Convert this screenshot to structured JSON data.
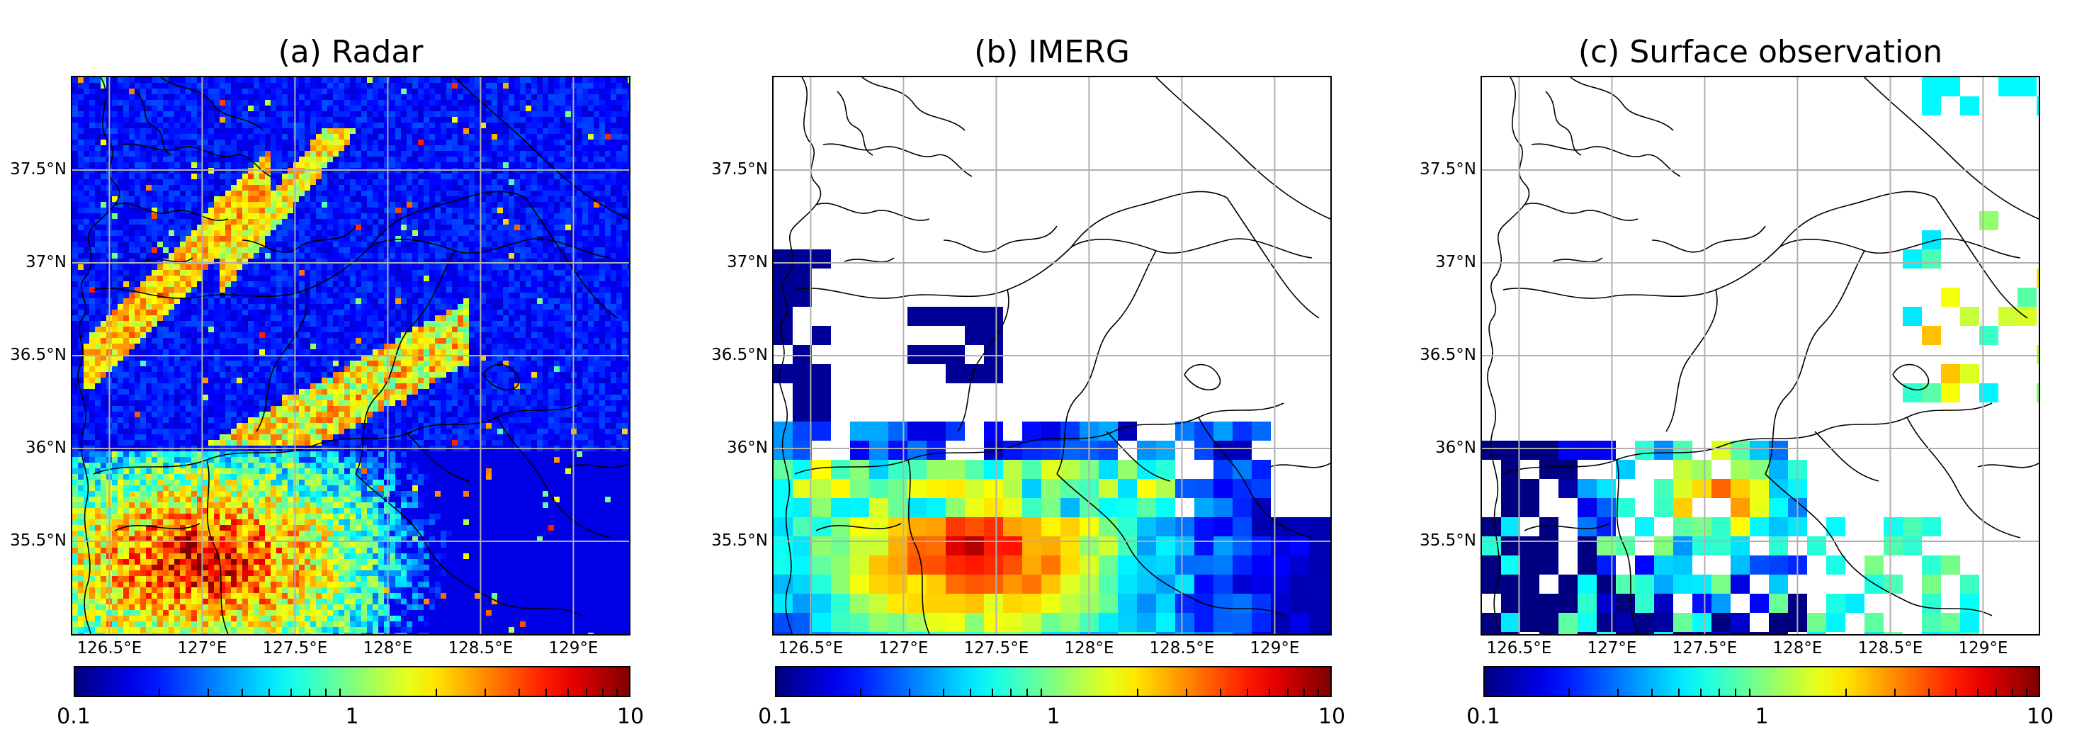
{
  "panels": [
    {
      "title": "(a) Radar",
      "kind": "radar"
    },
    {
      "title": "(b) IMERG",
      "kind": "imerg"
    },
    {
      "title": "(c) Surface observation",
      "kind": "surface"
    }
  ],
  "lat_labels": [
    "37.5°N",
    "37°N",
    "36.5°N",
    "36°N",
    "35.5°N"
  ],
  "lon_labels": [
    "126.5°E",
    "127°E",
    "127.5°E",
    "128°E",
    "128.5°E",
    "129°E"
  ],
  "colorbar": {
    "colormap": "jet",
    "scale": "log",
    "range": [
      0.1,
      10
    ],
    "tick_labels": [
      "0.1",
      "1",
      "10"
    ]
  },
  "map_extent": {
    "lon": [
      126.3,
      129.3
    ],
    "lat": [
      35.0,
      38.0
    ]
  },
  "colors": {
    "radar_background": "#00008f",
    "grid": "#b0b0b0",
    "coast": "#000000"
  }
}
